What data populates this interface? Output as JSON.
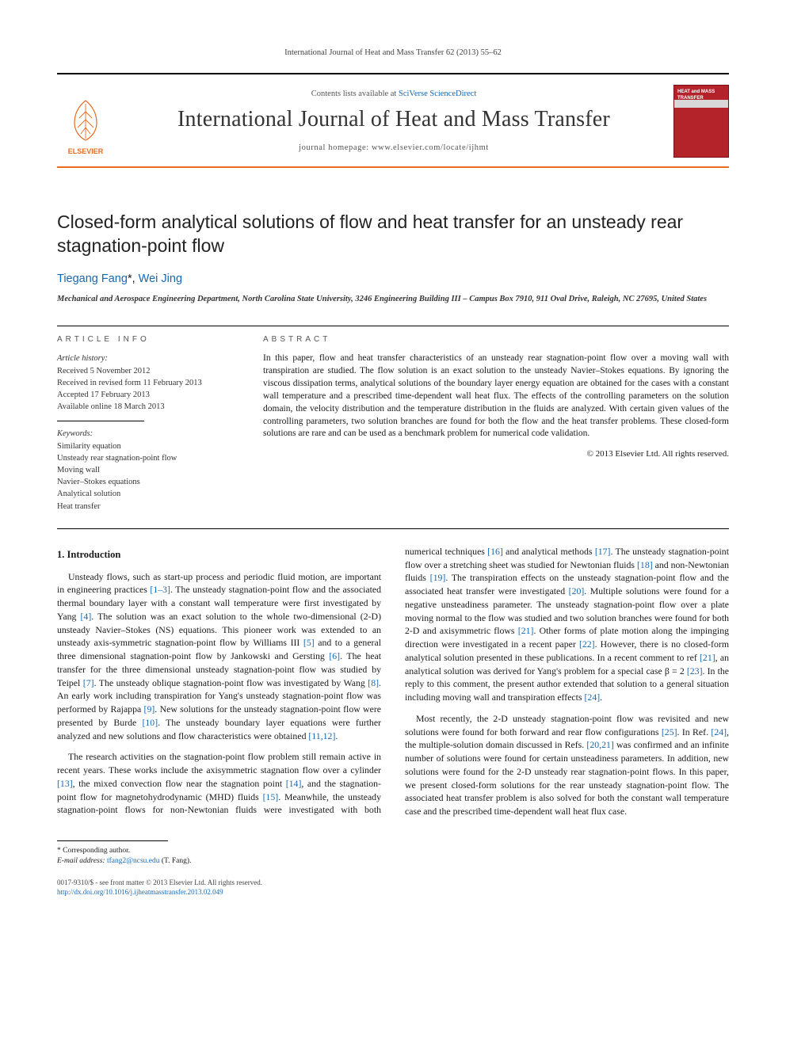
{
  "running_head": "International Journal of Heat and Mass Transfer 62 (2013) 55–62",
  "masthead": {
    "contents_prefix": "Contents lists available at ",
    "contents_link": "SciVerse ScienceDirect",
    "journal_name": "International Journal of Heat and Mass Transfer",
    "homepage_prefix": "journal homepage: ",
    "homepage_url": "www.elsevier.com/locate/ijhmt",
    "publisher": "ELSEVIER",
    "cover_line1": "International Journal of",
    "cover_line2": "HEAT and MASS",
    "cover_line3": "TRANSFER",
    "colors": {
      "rule_accent": "#ea6a1f",
      "link": "#1768b3",
      "cover_bg": "#b4232a"
    }
  },
  "title": "Closed-form analytical solutions of flow and heat transfer for an unsteady rear stagnation-point flow",
  "authors_html": "Tiegang Fang *, Wei Jing",
  "author_primary": "Tiegang Fang",
  "author_star": "*",
  "author_sep": ", ",
  "author_secondary": "Wei Jing",
  "affiliation": "Mechanical and Aerospace Engineering Department, North Carolina State University, 3246 Engineering Building III – Campus Box 7910, 911 Oval Drive, Raleigh, NC 27695, United States",
  "article_info": {
    "heading": "ARTICLE INFO",
    "history_label": "Article history:",
    "history": [
      "Received 5 November 2012",
      "Received in revised form 11 February 2013",
      "Accepted 17 February 2013",
      "Available online 18 March 2013"
    ],
    "keywords_label": "Keywords:",
    "keywords": [
      "Similarity equation",
      "Unsteady rear stagnation-point flow",
      "Moving wall",
      "Navier–Stokes equations",
      "Analytical solution",
      "Heat transfer"
    ]
  },
  "abstract": {
    "heading": "ABSTRACT",
    "text": "In this paper, flow and heat transfer characteristics of an unsteady rear stagnation-point flow over a moving wall with transpiration are studied. The flow solution is an exact solution to the unsteady Navier–Stokes equations. By ignoring the viscous dissipation terms, analytical solutions of the boundary layer energy equation are obtained for the cases with a constant wall temperature and a prescribed time-dependent wall heat flux. The effects of the controlling parameters on the solution domain, the velocity distribution and the temperature distribution in the fluids are analyzed. With certain given values of the controlling parameters, two solution branches are found for both the flow and the heat transfer problems. These closed-form solutions are rare and can be used as a benchmark problem for numerical code validation.",
    "copyright": "© 2013 Elsevier Ltd. All rights reserved."
  },
  "section1": {
    "heading": "1. Introduction",
    "p1": "Unsteady flows, such as start-up process and periodic fluid motion, are important in engineering practices [1–3]. The unsteady stagnation-point flow and the associated thermal boundary layer with a constant wall temperature were first investigated by Yang [4]. The solution was an exact solution to the whole two-dimensional (2-D) unsteady Navier–Stokes (NS) equations. This pioneer work was extended to an unsteady axis-symmetric stagnation-point flow by Williams III [5] and to a general three dimensional stagnation-point flow by Jankowski and Gersting [6]. The heat transfer for the three dimensional unsteady stagnation-point flow was studied by Teipel [7]. The unsteady oblique stagnation-point flow was investigated by Wang [8]. An early work including transpiration for Yang's unsteady stagnation-point flow was performed by Rajappa [9]. New solutions for the unsteady stagnation-point flow were presented by Burde [10]. The unsteady boundary layer equations were further analyzed and new solutions and flow characteristics were obtained [11,12].",
    "p2": "The research activities on the stagnation-point flow problem still remain active in recent years. These works include the axisymmetric stagnation flow over a cylinder [13], the mixed convection flow near the stagnation point [14], and the stagnation-point flow for magnetohydrodynamic (MHD) fluids [15]. Meanwhile, the unsteady stagnation-point flows for non-Newtonian fluids were investigated with both numerical techniques [16] and analytical methods [17]. The unsteady stagnation-point flow over a stretching sheet was studied for Newtonian fluids [18] and non-Newtonian fluids [19]. The transpiration effects on the unsteady stagnation-point flow and the associated heat transfer were investigated [20]. Multiple solutions were found for a negative unsteadiness parameter. The unsteady stagnation-point flow over a plate moving normal to the flow was studied and two solution branches were found for both 2-D and axisymmetric flows [21]. Other forms of plate motion along the impinging direction were investigated in a recent paper [22]. However, there is no closed-form analytical solution presented in these publications. In a recent comment to ref [21], an analytical solution was derived for Yang's problem for a special case β = 2 [23]. In the reply to this comment, the present author extended that solution to a general situation including moving wall and transpiration effects [24].",
    "p3": "Most recently, the 2-D unsteady stagnation-point flow was revisited and new solutions were found for both forward and rear flow configurations [25]. In Ref. [24], the multiple-solution domain discussed in Refs. [20,21] was confirmed and an infinite number of solutions were found for certain unsteadiness parameters. In addition, new solutions were found for the 2-D unsteady rear stagnation-point flows. In this paper, we present closed-form solutions for the rear unsteady stagnation-point flow. The associated heat transfer problem is also solved for both the constant wall temperature case and the prescribed time-dependent wall heat flux case."
  },
  "footnote": {
    "corr": "* Corresponding author.",
    "email_label": "E-mail address:",
    "email": "tfang2@ncsu.edu",
    "email_name": "(T. Fang)."
  },
  "footer": {
    "issn": "0017-9310/$ - see front matter © 2013 Elsevier Ltd. All rights reserved.",
    "doi_label": "http://dx.doi.org/",
    "doi": "10.1016/j.ijheatmasstransfer.2013.02.049"
  }
}
